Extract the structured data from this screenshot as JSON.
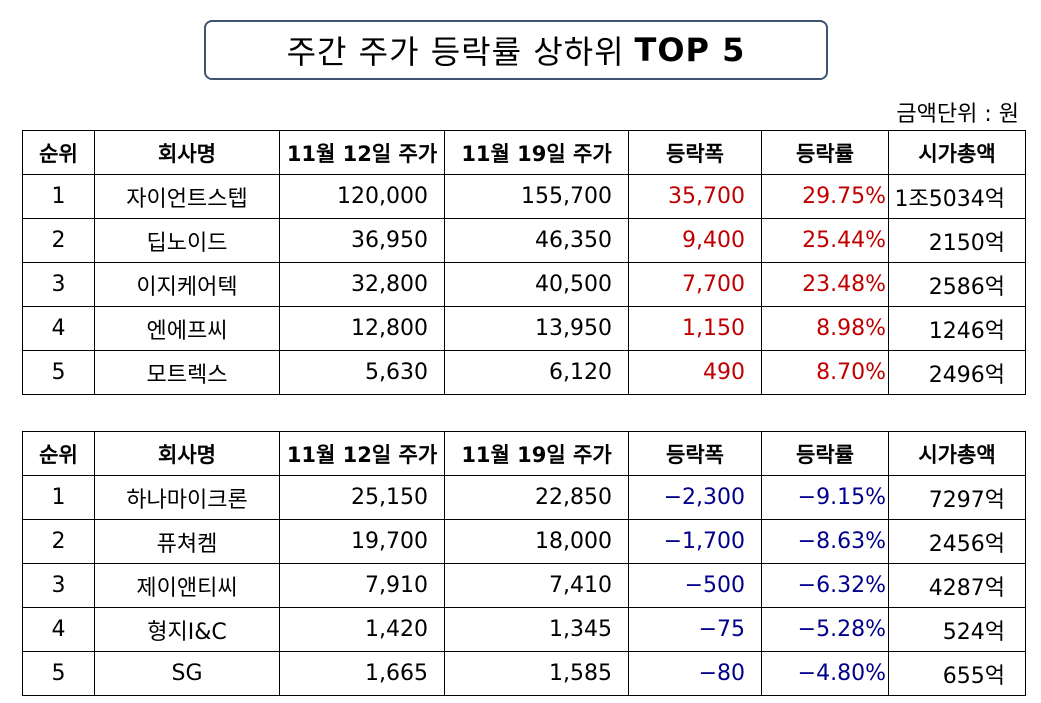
{
  "title": {
    "main": "주간 주가 등락률 상하위",
    "bold": "TOP 5"
  },
  "unit_label": "금액단위 : 원",
  "headers": [
    "순위",
    "회사명",
    "11월 12일 주가",
    "11월 19일 주가",
    "등락폭",
    "등락률",
    "시가총액"
  ],
  "colors": {
    "up": "#c00000",
    "down": "#00008b",
    "title_border": "#3f5470"
  },
  "top_gainers": [
    {
      "rank": "1",
      "company": "자이언트스텝",
      "price_nov12": "120,000",
      "price_nov19": "155,700",
      "change": "35,700",
      "rate": "29.75%",
      "market_cap": "1조5034억"
    },
    {
      "rank": "2",
      "company": "딥노이드",
      "price_nov12": "36,950",
      "price_nov19": "46,350",
      "change": "9,400",
      "rate": "25.44%",
      "market_cap": "2150억"
    },
    {
      "rank": "3",
      "company": "이지케어텍",
      "price_nov12": "32,800",
      "price_nov19": "40,500",
      "change": "7,700",
      "rate": "23.48%",
      "market_cap": "2586억"
    },
    {
      "rank": "4",
      "company": "엔에프씨",
      "price_nov12": "12,800",
      "price_nov19": "13,950",
      "change": "1,150",
      "rate": "8.98%",
      "market_cap": "1246억"
    },
    {
      "rank": "5",
      "company": "모트렉스",
      "price_nov12": "5,630",
      "price_nov19": "6,120",
      "change": "490",
      "rate": "8.70%",
      "market_cap": "2496억"
    }
  ],
  "top_losers": [
    {
      "rank": "1",
      "company": "하나마이크론",
      "price_nov12": "25,150",
      "price_nov19": "22,850",
      "change": "−2,300",
      "rate": "−9.15%",
      "market_cap": "7297억"
    },
    {
      "rank": "2",
      "company": "퓨쳐켐",
      "price_nov12": "19,700",
      "price_nov19": "18,000",
      "change": "−1,700",
      "rate": "−8.63%",
      "market_cap": "2456억"
    },
    {
      "rank": "3",
      "company": "제이앤티씨",
      "price_nov12": "7,910",
      "price_nov19": "7,410",
      "change": "−500",
      "rate": "−6.32%",
      "market_cap": "4287억"
    },
    {
      "rank": "4",
      "company": "형지I&C",
      "price_nov12": "1,420",
      "price_nov19": "1,345",
      "change": "−75",
      "rate": "−5.28%",
      "market_cap": "524억"
    },
    {
      "rank": "5",
      "company": "SG",
      "price_nov12": "1,665",
      "price_nov19": "1,585",
      "change": "−80",
      "rate": "−4.80%",
      "market_cap": "655억"
    }
  ]
}
